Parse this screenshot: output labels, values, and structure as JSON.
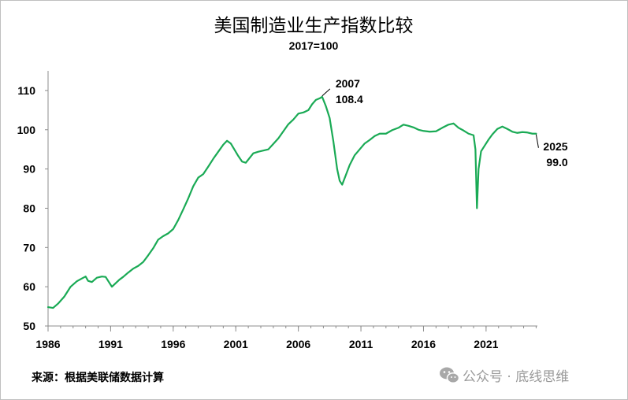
{
  "chart_data": {
    "type": "line",
    "title": "美国制造业生产指数比较",
    "subtitle": "2017=100",
    "xlabel": "",
    "ylabel": "",
    "xlim": [
      1986,
      2025.1
    ],
    "ylim": [
      50,
      115
    ],
    "y_ticks": [
      50,
      60,
      70,
      80,
      90,
      100,
      110
    ],
    "x_ticks": [
      "1986",
      "1991",
      "1996",
      "2001",
      "2006",
      "2011",
      "2016",
      "2021"
    ],
    "grid": false,
    "line_color": "#1aaa55",
    "series": [
      {
        "x": [
          1986.0,
          1986.4,
          1986.8,
          1987.3,
          1987.8,
          1988.3,
          1988.7,
          1989.0,
          1989.2,
          1989.5,
          1989.9,
          1990.3,
          1990.6,
          1990.9,
          1991.1,
          1991.3,
          1991.7,
          1992.0,
          1992.4,
          1992.8,
          1993.2,
          1993.6,
          1994.0,
          1994.4,
          1994.8,
          1995.2,
          1995.6,
          1996.0,
          1996.4,
          1996.8,
          1997.2,
          1997.6,
          1998.0,
          1998.4,
          1998.8,
          1999.2,
          1999.6,
          2000.0,
          2000.3,
          2000.6,
          2000.9,
          2001.2,
          2001.5,
          2001.8,
          2002.1,
          2002.4,
          2002.8,
          2003.2,
          2003.6,
          2004.0,
          2004.4,
          2004.8,
          2005.2,
          2005.6,
          2006.0,
          2006.4,
          2006.8,
          2007.1,
          2007.4,
          2007.7,
          2007.9,
          2008.2,
          2008.5,
          2008.8,
          2009.1,
          2009.3,
          2009.5,
          2009.8,
          2010.1,
          2010.5,
          2010.9,
          2011.3,
          2011.7,
          2012.1,
          2012.5,
          2013.0,
          2013.5,
          2014.0,
          2014.4,
          2014.8,
          2015.2,
          2015.6,
          2016.0,
          2016.5,
          2017.0,
          2017.5,
          2018.0,
          2018.4,
          2018.8,
          2019.2,
          2019.6,
          2020.0,
          2020.15,
          2020.27,
          2020.4,
          2020.6,
          2020.9,
          2021.2,
          2021.5,
          2021.9,
          2022.3,
          2022.7,
          2023.1,
          2023.5,
          2023.9,
          2024.3,
          2024.7,
          2025.0
        ],
        "values": [
          54.8,
          54.6,
          55.7,
          57.5,
          60.0,
          61.4,
          62.1,
          62.6,
          61.5,
          61.2,
          62.3,
          62.6,
          62.5,
          61.0,
          60.0,
          60.6,
          61.8,
          62.5,
          63.6,
          64.6,
          65.3,
          66.3,
          68.0,
          69.8,
          72.0,
          72.9,
          73.6,
          74.7,
          77.0,
          79.7,
          82.5,
          85.6,
          87.8,
          88.7,
          90.6,
          92.6,
          94.4,
          96.2,
          97.2,
          96.5,
          94.9,
          93.3,
          91.9,
          91.6,
          92.8,
          94.0,
          94.4,
          94.7,
          95.0,
          96.4,
          97.8,
          99.6,
          101.4,
          102.6,
          104.1,
          104.4,
          105.0,
          106.5,
          107.6,
          108.0,
          108.4,
          106.0,
          103.0,
          97.0,
          90.0,
          87.0,
          86.0,
          88.5,
          91.0,
          93.5,
          95.0,
          96.5,
          97.4,
          98.4,
          99.0,
          99.0,
          99.9,
          100.5,
          101.3,
          101.0,
          100.6,
          100.0,
          99.7,
          99.5,
          99.6,
          100.5,
          101.3,
          101.6,
          100.5,
          99.8,
          99.0,
          98.6,
          95.0,
          80.0,
          90.0,
          94.5,
          96.0,
          97.5,
          98.8,
          100.2,
          100.8,
          100.2,
          99.5,
          99.2,
          99.4,
          99.3,
          99.0,
          99.0
        ]
      }
    ],
    "annotations": [
      {
        "year_label": "2007",
        "value_label": "108.4",
        "x": 2007.9,
        "y": 108.4
      },
      {
        "year_label": "2025",
        "value_label": "99.0",
        "x": 2025.0,
        "y": 99.0
      }
    ]
  },
  "source": "来源：根据美联储数据计算",
  "watermark": {
    "icon": "wechat-icon",
    "text": "公众号 · 底线思维"
  }
}
